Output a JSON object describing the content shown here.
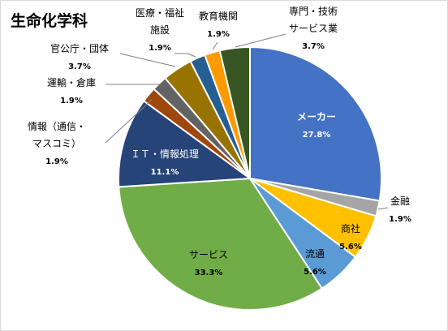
{
  "chart_data": {
    "type": "pie",
    "title": "生命化学科",
    "legend": "none",
    "slices": [
      {
        "name": "メーカー",
        "value": 27.8,
        "label": "27.8%",
        "color": "#4472c4"
      },
      {
        "name": "金融",
        "value": 1.9,
        "label": "1.9%",
        "color": "#a5a5a5"
      },
      {
        "name": "商社",
        "value": 5.6,
        "label": "5.6%",
        "color": "#ffc000"
      },
      {
        "name": "流通",
        "value": 5.6,
        "label": "5.6%",
        "color": "#5b9bd5"
      },
      {
        "name": "サービス",
        "value": 33.3,
        "label": "33.3%",
        "color": "#70ad47"
      },
      {
        "name": "ＩＴ・情報処理",
        "value": 11.1,
        "label": "11.1%",
        "color": "#264478"
      },
      {
        "name": "情報（通信・マスコミ）",
        "value": 1.9,
        "label": "1.9%",
        "color": "#9e480e"
      },
      {
        "name": "運輸・倉庫",
        "value": 1.9,
        "label": "1.9%",
        "color": "#636363"
      },
      {
        "name": "官公庁・団体",
        "value": 3.7,
        "label": "3.7%",
        "color": "#997300"
      },
      {
        "name": "医療・福祉施設",
        "value": 1.9,
        "label": "1.9%",
        "color": "#255e91"
      },
      {
        "name": "教育機関",
        "value": 1.9,
        "label": "1.9%",
        "color": "#ff9900"
      },
      {
        "name": "専門・技術サービス業",
        "value": 3.7,
        "label": "3.7%",
        "color": "#375623"
      }
    ]
  }
}
